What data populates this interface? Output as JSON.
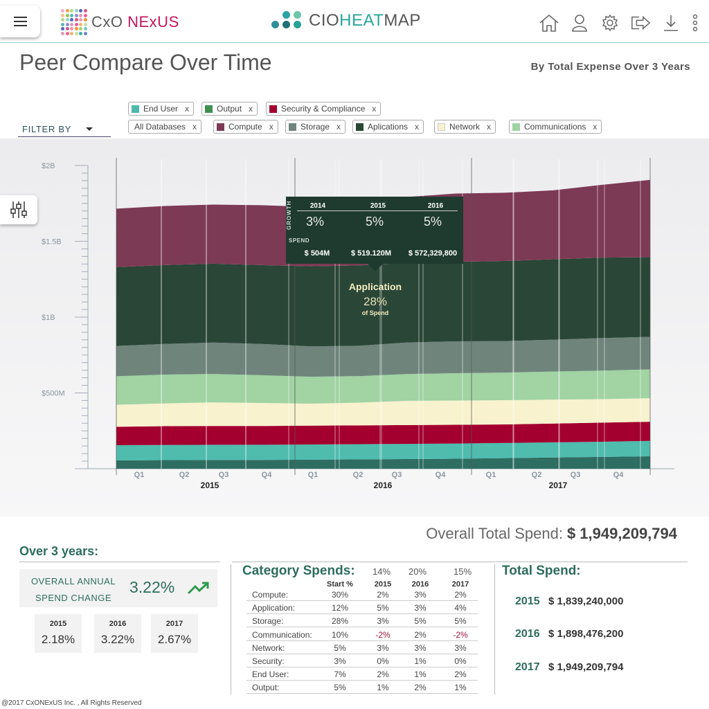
{
  "header": {
    "brand1_cx": "CxO",
    "brand1_rest": "NExUS",
    "brand2_a": "CIO",
    "brand2_b": "HEAT",
    "brand2_c": "MAP",
    "icons": [
      "home-icon",
      "user-icon",
      "gear-icon",
      "logout-icon",
      "download-icon",
      "more-vertical-icon"
    ]
  },
  "page": {
    "title": "Peer Compare Over Time",
    "subtitle": "By Total Expense Over 3 Years"
  },
  "filter": {
    "label": "FILTER BY",
    "chips": [
      {
        "label": "End User",
        "color": "#4fb8ad"
      },
      {
        "label": "Output",
        "color": "#3f8f4f"
      },
      {
        "label": "Security & Compliance",
        "color": "#a3002f"
      },
      {
        "label": "All Databases",
        "color": ""
      },
      {
        "label": "Compute",
        "color": "#7d3a55"
      },
      {
        "label": "Storage",
        "color": "#6f857c"
      },
      {
        "label": "Aplications",
        "color": "#2a4637"
      },
      {
        "label": "Network",
        "color": "#f8f2cf"
      },
      {
        "label": "Communications",
        "color": "#a1d3a3"
      }
    ],
    "remove": "x"
  },
  "chart_data": {
    "type": "area",
    "stacked": true,
    "ylabel_ticks": [
      "$500M",
      "$1B",
      "$1.5B",
      "$2B"
    ],
    "ylim": [
      0,
      2000
    ],
    "units": "$M",
    "quarters": [
      "Q1",
      "Q2",
      "Q3",
      "Q4",
      "Q1",
      "Q2",
      "Q3",
      "Q4",
      "Q1",
      "Q2",
      "Q3",
      "Q4"
    ],
    "years": [
      "2015",
      "2016",
      "2017"
    ],
    "x": [
      0,
      1,
      2,
      3,
      4,
      5,
      6,
      7,
      8,
      9,
      10,
      11
    ],
    "series": [
      {
        "name": "Output",
        "color": "#2e6e62",
        "values": [
          55,
          57,
          58,
          58,
          60,
          62,
          64,
          66,
          70,
          74,
          78,
          82
        ]
      },
      {
        "name": "End User",
        "color": "#4fbcae",
        "values": [
          100,
          100,
          100,
          100,
          100,
          100,
          100,
          100,
          100,
          100,
          100,
          102
        ]
      },
      {
        "name": "Security & Compliance",
        "color": "#a3002f",
        "values": [
          122,
          124,
          124,
          124,
          124,
          124,
          124,
          124,
          122,
          124,
          126,
          126
        ]
      },
      {
        "name": "Network",
        "color": "#f8f2cf",
        "values": [
          145,
          150,
          156,
          152,
          145,
          150,
          160,
          160,
          160,
          158,
          155,
          155
        ]
      },
      {
        "name": "Communications",
        "color": "#a1d3a3",
        "values": [
          188,
          190,
          187,
          183,
          178,
          175,
          177,
          180,
          182,
          185,
          188,
          190
        ]
      },
      {
        "name": "Storage",
        "color": "#6f857c",
        "values": [
          200,
          202,
          207,
          206,
          200,
          200,
          208,
          210,
          208,
          210,
          215,
          215
        ]
      },
      {
        "name": "Application",
        "color": "#2a4637",
        "values": [
          520,
          520,
          520,
          520,
          528,
          530,
          525,
          525,
          528,
          530,
          530,
          525
        ]
      },
      {
        "name": "Compute",
        "color": "#7d3a55",
        "values": [
          385,
          390,
          390,
          395,
          392,
          425,
          435,
          450,
          450,
          455,
          480,
          510
        ]
      }
    ]
  },
  "tooltip": {
    "growth_label": "GROWTH",
    "years": [
      "2014",
      "2015",
      "2016"
    ],
    "growth": [
      "3%",
      "5%",
      "5%"
    ],
    "spend_label": "SPEND",
    "spends": [
      "$ 504M",
      "$ 519.120M",
      "$ 572,329,800"
    ],
    "focus_name": "Application",
    "focus_pct": "28%",
    "focus_sub": "of Spend"
  },
  "summary": {
    "overall_label": "Overall Total Spend:",
    "overall_value": "$ 1,949,209,794",
    "over3_title": "Over 3 years:",
    "oas_label": "OVERALL ANNUAL SPEND CHANGE",
    "oas_value": "3.22%",
    "yearly": [
      {
        "year": "2015",
        "value": "2.18%"
      },
      {
        "year": "2016",
        "value": "3.22%"
      },
      {
        "year": "2017",
        "value": "2.67%"
      }
    ]
  },
  "category": {
    "title": "Category Spends:",
    "totals": [
      "14%",
      "20%",
      "15%"
    ],
    "headers": [
      "Start %",
      "2015",
      "2016",
      "2017"
    ],
    "rows": [
      {
        "name": "Compute:",
        "start": "30%",
        "y2015": "2%",
        "y2016": "3%",
        "y2017": "2%"
      },
      {
        "name": "Application:",
        "start": "12%",
        "y2015": "5%",
        "y2016": "3%",
        "y2017": "4%"
      },
      {
        "name": "Storage:",
        "start": "28%",
        "y2015": "3%",
        "y2016": "5%",
        "y2017": "5%"
      },
      {
        "name": "Communication:",
        "start": "10%",
        "y2015": "-2%",
        "y2016": "2%",
        "y2017": "-2%"
      },
      {
        "name": "Network:",
        "start": "5%",
        "y2015": "3%",
        "y2016": "3%",
        "y2017": "3%"
      },
      {
        "name": "Security:",
        "start": "3%",
        "y2015": "0%",
        "y2016": "1%",
        "y2017": "0%"
      },
      {
        "name": "End User:",
        "start": "7%",
        "y2015": "2%",
        "y2016": "1%",
        "y2017": "2%"
      },
      {
        "name": "Output:",
        "start": "5%",
        "y2015": "1%",
        "y2016": "2%",
        "y2017": "1%"
      }
    ]
  },
  "total_spend": {
    "title": "Total Spend:",
    "rows": [
      {
        "year": "2015",
        "value": "$ 1,839,240,000"
      },
      {
        "year": "2016",
        "value": "$ 1,898,476,200"
      },
      {
        "year": "2017",
        "value": "$ 1,949,209,794"
      }
    ]
  },
  "footer": {
    "copyright": "@2017 CxONExUS Inc. , All Rights Reserved"
  }
}
